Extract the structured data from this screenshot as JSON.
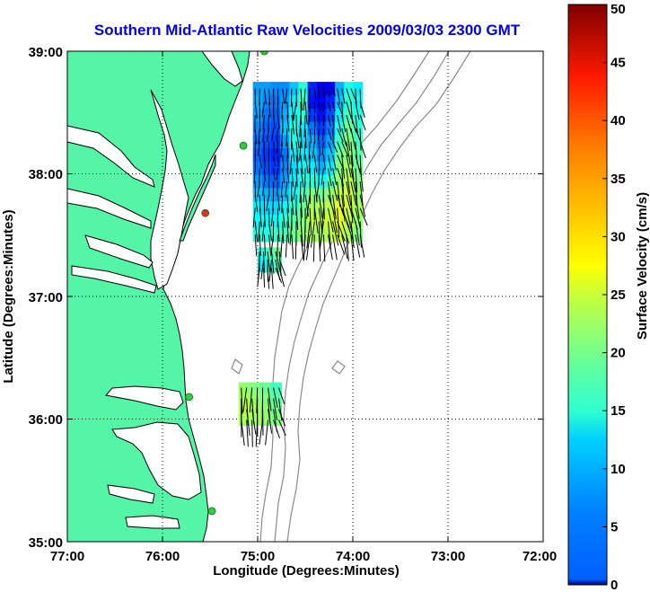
{
  "chart_data": {
    "type": "heatmap",
    "title": "Southern Mid-Atlantic Raw Velocities 2009/03/03 2300 GMT",
    "xlabel": "Longitude (Degrees:Minutes)",
    "ylabel": "Latitude (Degrees:Minutes)",
    "x_range": [
      -77,
      -72
    ],
    "y_range": [
      35,
      39
    ],
    "x_ticks": [
      -77,
      -76,
      -75,
      -74,
      -73,
      -72
    ],
    "x_tick_labels": [
      "77:00",
      "76:00",
      "75:00",
      "74:00",
      "73:00",
      "72:00"
    ],
    "y_ticks": [
      35,
      36,
      37,
      38,
      39
    ],
    "y_tick_labels": [
      "35:00",
      "36:00",
      "37:00",
      "38:00",
      "39:00"
    ],
    "grid": true,
    "colorbar": {
      "label": "Surface Velocity (cm/s)",
      "range": [
        0,
        50
      ],
      "ticks": [
        0,
        5,
        10,
        15,
        20,
        25,
        30,
        35,
        40,
        45,
        50
      ],
      "tick_labels": [
        "0",
        "5",
        "10",
        "15",
        "20",
        "25",
        "30",
        "35",
        "40",
        "45",
        "50"
      ],
      "colormap": "jet"
    },
    "colors": {
      "land": "#55f5a8",
      "coastline": "#000000",
      "bathymetry": "#8a8a8a",
      "title": "#0000ee",
      "grid": "#000000"
    },
    "stations": [
      {
        "lon": -74.93,
        "lat": 39.0,
        "status": "active",
        "color": "#2ecc40"
      },
      {
        "lon": -75.15,
        "lat": 38.23,
        "status": "active",
        "color": "#2ecc40"
      },
      {
        "lon": -75.55,
        "lat": 37.68,
        "status": "inactive",
        "color": "#e0301e"
      },
      {
        "lon": -75.72,
        "lat": 36.18,
        "status": "active",
        "color": "#2ecc40"
      },
      {
        "lon": -75.48,
        "lat": 35.25,
        "status": "active",
        "color": "#2ecc40"
      }
    ],
    "velocity_regions": [
      {
        "name": "north",
        "lon_range": [
          -75.05,
          -73.9
        ],
        "lat_range": [
          37.45,
          38.75
        ],
        "speed_cm_s": [
          [
            14,
            14,
            13,
            13,
            16,
            21,
            8,
            5,
            6,
            15,
            20,
            18
          ],
          [
            15,
            13,
            12,
            14,
            18,
            22,
            7,
            6,
            8,
            16,
            21,
            19
          ],
          [
            14,
            12,
            11,
            15,
            19,
            21,
            9,
            7,
            10,
            18,
            22,
            20
          ],
          [
            13,
            11,
            10,
            16,
            20,
            18,
            12,
            9,
            12,
            20,
            24,
            21
          ],
          [
            12,
            10,
            9,
            14,
            20,
            17,
            15,
            11,
            14,
            22,
            25,
            22
          ],
          [
            11,
            9,
            8,
            12,
            18,
            18,
            16,
            13,
            16,
            24,
            26,
            23
          ],
          [
            12,
            10,
            9,
            13,
            17,
            19,
            18,
            15,
            18,
            25,
            27,
            24
          ],
          [
            14,
            12,
            11,
            14,
            18,
            20,
            21,
            19,
            22,
            26,
            28,
            25
          ],
          [
            16,
            15,
            14,
            16,
            19,
            22,
            25,
            24,
            26,
            28,
            29,
            26
          ],
          [
            18,
            17,
            17,
            19,
            21,
            24,
            27,
            27,
            28,
            30,
            29,
            27
          ],
          [
            19,
            19,
            19,
            21,
            23,
            25,
            28,
            28,
            29,
            30,
            28,
            26
          ],
          [
            20,
            20,
            21,
            22,
            24,
            26,
            27,
            27,
            28,
            29,
            27,
            25
          ]
        ]
      },
      {
        "name": "middle",
        "lon_range": [
          -75.0,
          -74.75
        ],
        "lat_range": [
          37.2,
          37.4
        ],
        "speed_cm_s": [
          [
            20,
            22,
            24
          ],
          [
            19,
            21,
            23
          ],
          [
            18,
            20,
            22
          ]
        ]
      },
      {
        "name": "south",
        "lon_range": [
          -75.2,
          -74.75
        ],
        "lat_range": [
          35.95,
          36.3
        ],
        "speed_cm_s": [
          [
            26,
            25,
            24,
            22
          ],
          [
            27,
            26,
            25,
            23
          ],
          [
            28,
            27,
            26,
            24
          ],
          [
            27,
            27,
            26,
            25
          ]
        ]
      }
    ],
    "vector_direction": "predominantly southward"
  }
}
